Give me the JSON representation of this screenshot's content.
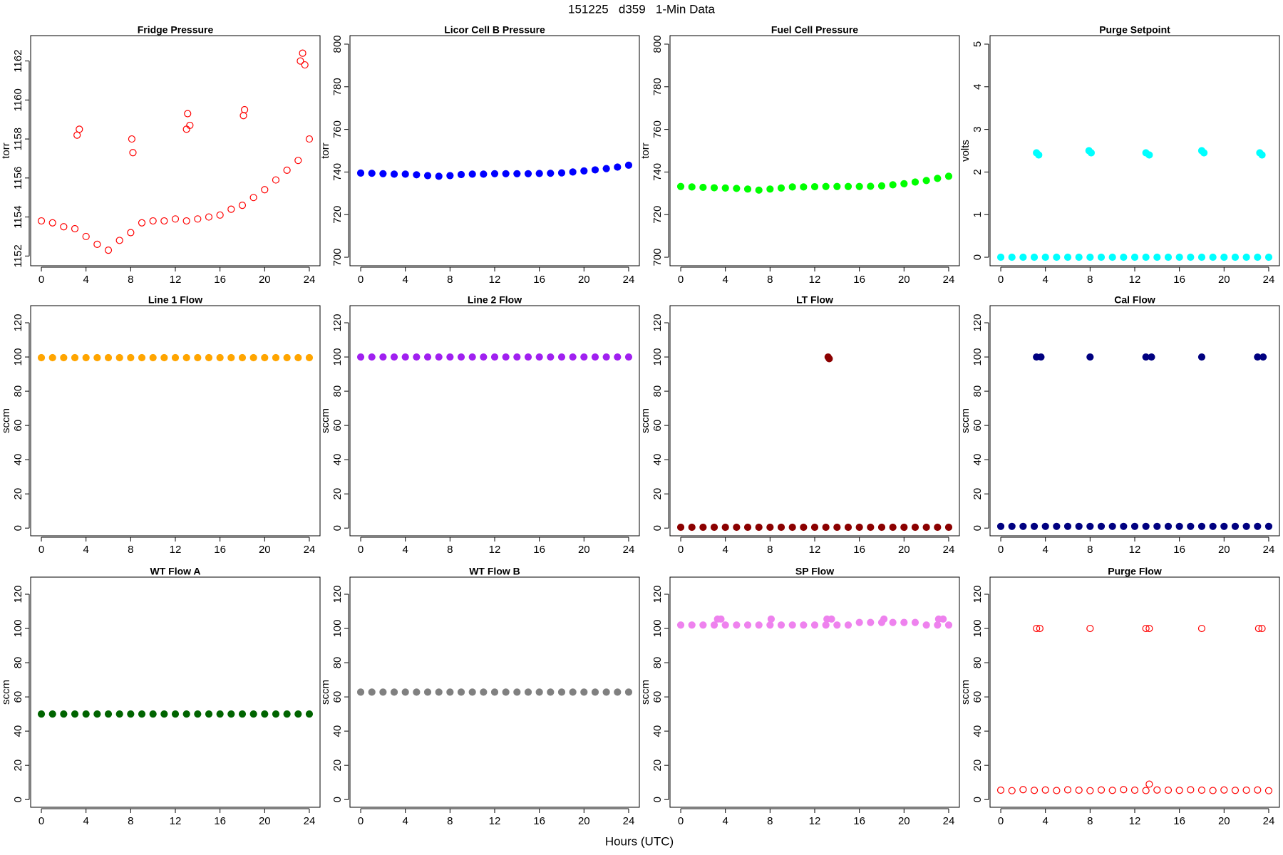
{
  "title": "151225   d359   1-Min Data",
  "xlabel": "Hours (UTC)",
  "chart_data": [
    {
      "type": "scatter",
      "title": "Fridge Pressure",
      "ylabel": "torr",
      "color": "#ff0000",
      "marker": "open",
      "x": [
        0,
        1,
        2,
        3,
        4,
        5,
        6,
        7,
        8,
        9,
        10,
        11,
        12,
        13,
        14,
        15,
        16,
        17,
        18,
        19,
        20,
        21,
        22,
        23,
        24,
        3.2,
        3.4,
        8.1,
        8.2,
        13.0,
        13.1,
        13.3,
        18.1,
        18.2,
        23.2,
        23.4,
        23.6
      ],
      "values": [
        1153.8,
        1153.7,
        1153.5,
        1153.4,
        1153.0,
        1152.6,
        1152.3,
        1152.8,
        1153.2,
        1153.7,
        1153.8,
        1153.8,
        1153.9,
        1153.8,
        1153.9,
        1154.0,
        1154.1,
        1154.4,
        1154.6,
        1155.0,
        1155.4,
        1155.9,
        1156.4,
        1156.9,
        1158.0,
        1158.2,
        1158.5,
        1158.0,
        1157.3,
        1158.5,
        1159.3,
        1158.7,
        1159.2,
        1159.5,
        1162.0,
        1162.4,
        1161.8
      ],
      "xlim": [
        -0.96,
        24.96
      ],
      "xticks": [
        0,
        4,
        8,
        12,
        16,
        20,
        24
      ],
      "ylim": [
        1151.5,
        1163.3
      ],
      "yticks": [
        1152,
        1154,
        1156,
        1158,
        1160,
        1162
      ]
    },
    {
      "type": "scatter",
      "title": "Licor Cell B Pressure",
      "ylabel": "torr",
      "color": "#0000ff",
      "marker": "filled",
      "x": [
        0,
        1,
        2,
        3,
        4,
        5,
        6,
        7,
        8,
        9,
        10,
        11,
        12,
        13,
        14,
        15,
        16,
        17,
        18,
        19,
        20,
        21,
        22,
        23,
        24
      ],
      "values": [
        739.5,
        739.4,
        739.2,
        739.0,
        739.0,
        738.7,
        738.3,
        738.0,
        738.3,
        738.8,
        739.0,
        739.0,
        739.2,
        739.2,
        739.2,
        739.2,
        739.3,
        739.4,
        739.6,
        740.0,
        740.5,
        741.0,
        741.6,
        742.3,
        743.2
      ],
      "xlim": [
        -0.96,
        24.96
      ],
      "xticks": [
        0,
        4,
        8,
        12,
        16,
        20,
        24
      ],
      "ylim": [
        696,
        804
      ],
      "yticks": [
        700,
        720,
        740,
        760,
        780,
        800
      ]
    },
    {
      "type": "scatter",
      "title": "Fuel Cell Pressure",
      "ylabel": "torr",
      "color": "#00ff00",
      "marker": "filled",
      "x": [
        0,
        1,
        2,
        3,
        4,
        5,
        6,
        7,
        8,
        9,
        10,
        11,
        12,
        13,
        14,
        15,
        16,
        17,
        18,
        19,
        20,
        21,
        22,
        23,
        24
      ],
      "values": [
        733.2,
        733.0,
        732.8,
        732.6,
        732.5,
        732.3,
        732.0,
        731.5,
        732.0,
        732.5,
        733.0,
        733.0,
        733.1,
        733.2,
        733.2,
        733.2,
        733.2,
        733.3,
        733.5,
        734.0,
        734.5,
        735.3,
        736.0,
        737.0,
        738.0
      ],
      "xlim": [
        -0.96,
        24.96
      ],
      "xticks": [
        0,
        4,
        8,
        12,
        16,
        20,
        24
      ],
      "ylim": [
        696,
        804
      ],
      "yticks": [
        700,
        720,
        740,
        760,
        780,
        800
      ]
    },
    {
      "type": "scatter",
      "title": "Purge Setpoint",
      "ylabel": "volts",
      "color": "#00ffff",
      "marker": "filled",
      "x": [
        0,
        1,
        2,
        3,
        4,
        5,
        6,
        7,
        8,
        9,
        10,
        11,
        12,
        13,
        14,
        15,
        16,
        17,
        18,
        19,
        20,
        21,
        22,
        23,
        24,
        3.2,
        3.4,
        7.9,
        8.1,
        13.0,
        13.3,
        18.0,
        18.2,
        23.2,
        23.4
      ],
      "values": [
        0,
        0,
        0,
        0,
        0,
        0,
        0,
        0,
        0,
        0,
        0,
        0,
        0,
        0,
        0,
        0,
        0,
        0,
        0,
        0,
        0,
        0,
        0,
        0,
        0,
        2.45,
        2.4,
        2.5,
        2.45,
        2.45,
        2.4,
        2.5,
        2.45,
        2.45,
        2.4
      ],
      "xlim": [
        -0.96,
        24.96
      ],
      "xticks": [
        0,
        4,
        8,
        12,
        16,
        20,
        24
      ],
      "ylim": [
        -0.2,
        5.2
      ],
      "yticks": [
        0,
        1,
        2,
        3,
        4,
        5
      ]
    },
    {
      "type": "scatter",
      "title": "Line 1 Flow",
      "ylabel": "sccm",
      "color": "#ffa500",
      "marker": "filled",
      "x": [
        0,
        1,
        2,
        3,
        4,
        5,
        6,
        7,
        8,
        9,
        10,
        11,
        12,
        13,
        14,
        15,
        16,
        17,
        18,
        19,
        20,
        21,
        22,
        23,
        24
      ],
      "values": [
        99.6,
        99.6,
        99.6,
        99.6,
        99.6,
        99.6,
        99.6,
        99.6,
        99.6,
        99.6,
        99.6,
        99.6,
        99.6,
        99.6,
        99.6,
        99.6,
        99.6,
        99.6,
        99.6,
        99.6,
        99.6,
        99.6,
        99.6,
        99.6,
        99.6
      ],
      "xlim": [
        -0.96,
        24.96
      ],
      "xticks": [
        0,
        4,
        8,
        12,
        16,
        20,
        24
      ],
      "ylim": [
        -4.5,
        130
      ],
      "yticks": [
        0,
        20,
        40,
        60,
        80,
        100,
        120
      ]
    },
    {
      "type": "scatter",
      "title": "Line 2 Flow",
      "ylabel": "sccm",
      "color": "#a020f0",
      "marker": "filled",
      "x": [
        0,
        1,
        2,
        3,
        4,
        5,
        6,
        7,
        8,
        9,
        10,
        11,
        12,
        13,
        14,
        15,
        16,
        17,
        18,
        19,
        20,
        21,
        22,
        23,
        24
      ],
      "values": [
        100,
        100,
        100,
        100,
        100,
        100,
        100,
        100,
        100,
        100,
        100,
        100,
        100,
        100,
        100,
        100,
        100,
        100,
        100,
        100,
        100,
        100,
        100,
        100,
        100
      ],
      "xlim": [
        -0.96,
        24.96
      ],
      "xticks": [
        0,
        4,
        8,
        12,
        16,
        20,
        24
      ],
      "ylim": [
        -4.5,
        130
      ],
      "yticks": [
        0,
        20,
        40,
        60,
        80,
        100,
        120
      ]
    },
    {
      "type": "scatter",
      "title": "LT Flow",
      "ylabel": "sccm",
      "color": "#8b0000",
      "marker": "filled",
      "x": [
        0,
        1,
        2,
        3,
        4,
        5,
        6,
        7,
        8,
        9,
        10,
        11,
        12,
        13,
        14,
        15,
        16,
        17,
        18,
        19,
        20,
        21,
        22,
        23,
        24,
        13.2,
        13.3
      ],
      "values": [
        0.5,
        0.5,
        0.5,
        0.5,
        0.5,
        0.5,
        0.5,
        0.5,
        0.5,
        0.5,
        0.5,
        0.5,
        0.5,
        0.5,
        0.5,
        0.5,
        0.5,
        0.5,
        0.5,
        0.5,
        0.5,
        0.5,
        0.5,
        0.5,
        0.5,
        100,
        99
      ],
      "xlim": [
        -0.96,
        24.96
      ],
      "xticks": [
        0,
        4,
        8,
        12,
        16,
        20,
        24
      ],
      "ylim": [
        -4.5,
        130
      ],
      "yticks": [
        0,
        20,
        40,
        60,
        80,
        100,
        120
      ]
    },
    {
      "type": "scatter",
      "title": "Cal Flow",
      "ylabel": "sccm",
      "color": "#000080",
      "marker": "filled",
      "x": [
        0,
        1,
        2,
        3,
        4,
        5,
        6,
        7,
        8,
        9,
        10,
        11,
        12,
        13,
        14,
        15,
        16,
        17,
        18,
        19,
        20,
        21,
        22,
        23,
        24,
        3.2,
        3.6,
        8.0,
        13.0,
        13.5,
        18.0,
        23.0,
        23.5
      ],
      "values": [
        1,
        1,
        1,
        1,
        1,
        1,
        1,
        1,
        1,
        1,
        1,
        1,
        1,
        1,
        1,
        1,
        1,
        1,
        1,
        1,
        1,
        1,
        1,
        1,
        1,
        100,
        100,
        100,
        100,
        100,
        100,
        100,
        100
      ],
      "xlim": [
        -0.96,
        24.96
      ],
      "xticks": [
        0,
        4,
        8,
        12,
        16,
        20,
        24
      ],
      "ylim": [
        -4.5,
        130
      ],
      "yticks": [
        0,
        20,
        40,
        60,
        80,
        100,
        120
      ]
    },
    {
      "type": "scatter",
      "title": "WT Flow A",
      "ylabel": "sccm",
      "color": "#006400",
      "marker": "filled",
      "x": [
        0,
        1,
        2,
        3,
        4,
        5,
        6,
        7,
        8,
        9,
        10,
        11,
        12,
        13,
        14,
        15,
        16,
        17,
        18,
        19,
        20,
        21,
        22,
        23,
        24
      ],
      "values": [
        50,
        50,
        50,
        50,
        50,
        50,
        50,
        50,
        50,
        50,
        50,
        50,
        50,
        50,
        50,
        50,
        50,
        50,
        50,
        50,
        50,
        50,
        50,
        50,
        50
      ],
      "xlim": [
        -0.96,
        24.96
      ],
      "xticks": [
        0,
        4,
        8,
        12,
        16,
        20,
        24
      ],
      "ylim": [
        -4.5,
        130
      ],
      "yticks": [
        0,
        20,
        40,
        60,
        80,
        100,
        120
      ]
    },
    {
      "type": "scatter",
      "title": "WT Flow B",
      "ylabel": "sccm",
      "color": "#808080",
      "marker": "filled",
      "x": [
        0,
        1,
        2,
        3,
        4,
        5,
        6,
        7,
        8,
        9,
        10,
        11,
        12,
        13,
        14,
        15,
        16,
        17,
        18,
        19,
        20,
        21,
        22,
        23,
        24
      ],
      "values": [
        62.8,
        62.8,
        62.8,
        62.8,
        62.8,
        62.8,
        62.8,
        62.8,
        62.8,
        62.8,
        62.8,
        62.8,
        62.8,
        62.8,
        62.8,
        62.8,
        62.8,
        62.8,
        62.8,
        62.8,
        62.8,
        62.8,
        62.8,
        62.8,
        62.8
      ],
      "xlim": [
        -0.96,
        24.96
      ],
      "xticks": [
        0,
        4,
        8,
        12,
        16,
        20,
        24
      ],
      "ylim": [
        -4.5,
        130
      ],
      "yticks": [
        0,
        20,
        40,
        60,
        80,
        100,
        120
      ]
    },
    {
      "type": "scatter",
      "title": "SP Flow",
      "ylabel": "sccm",
      "color": "#ee82ee",
      "marker": "filled",
      "x": [
        0,
        1,
        2,
        3,
        4,
        5,
        6,
        7,
        8,
        9,
        10,
        11,
        12,
        13,
        14,
        15,
        16,
        17,
        18,
        19,
        20,
        21,
        22,
        23,
        24,
        3.3,
        3.6,
        8.1,
        13.1,
        13.5,
        18.2,
        23.1,
        23.5
      ],
      "values": [
        102,
        102,
        102,
        102,
        102,
        102,
        102,
        102,
        102,
        102,
        102,
        102,
        102,
        102,
        102,
        102,
        103.5,
        103.5,
        103.5,
        103.5,
        103.5,
        103.5,
        102,
        102,
        102,
        105.5,
        105.5,
        105.5,
        105.5,
        105.5,
        105.5,
        105.5,
        105.5
      ],
      "xlim": [
        -0.96,
        24.96
      ],
      "xticks": [
        0,
        4,
        8,
        12,
        16,
        20,
        24
      ],
      "ylim": [
        -4.5,
        130
      ],
      "yticks": [
        0,
        20,
        40,
        60,
        80,
        100,
        120
      ]
    },
    {
      "type": "scatter",
      "title": "Purge Flow",
      "ylabel": "sccm",
      "color": "#ff0000",
      "marker": "open",
      "x": [
        0,
        1,
        2,
        3,
        4,
        5,
        6,
        7,
        8,
        9,
        10,
        11,
        12,
        13,
        14,
        15,
        16,
        17,
        18,
        19,
        20,
        21,
        22,
        23,
        24,
        3.2,
        3.5,
        8.0,
        13.0,
        13.3,
        18.0,
        23.1,
        23.4,
        13.3
      ],
      "values": [
        5.5,
        5.2,
        5.8,
        5.4,
        5.6,
        5.3,
        5.7,
        5.5,
        5.2,
        5.6,
        5.4,
        5.8,
        5.5,
        5.3,
        5.6,
        5.5,
        5.4,
        5.7,
        5.5,
        5.3,
        5.6,
        5.4,
        5.5,
        5.6,
        5.2,
        100,
        100,
        100,
        100,
        100,
        100,
        100,
        100,
        9
      ],
      "xlim": [
        -0.96,
        24.96
      ],
      "xticks": [
        0,
        4,
        8,
        12,
        16,
        20,
        24
      ],
      "ylim": [
        -4.5,
        130
      ],
      "yticks": [
        0,
        20,
        40,
        60,
        80,
        100,
        120
      ]
    }
  ]
}
